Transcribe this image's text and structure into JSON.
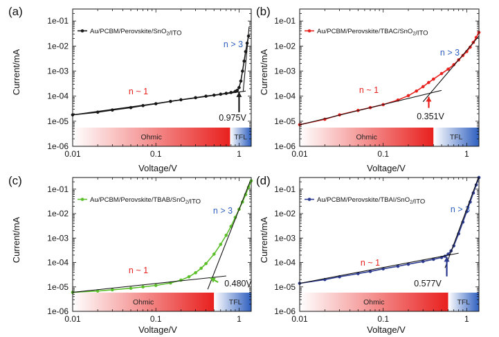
{
  "chart_data": [
    {
      "type": "line",
      "panel_label": "(a)",
      "xlabel": "Voltage/V",
      "ylabel": "Current/mA",
      "xscale": "log",
      "yscale": "log",
      "xlim": [
        0.01,
        1.4
      ],
      "ylim": [
        1e-06,
        0.3
      ],
      "x_tick_labels": [
        "0.01",
        "0.1",
        "1"
      ],
      "y_tick_labels": [
        "1e-06",
        "1e-05",
        "1e-04",
        "1e-03",
        "1e-02",
        "1e-01"
      ],
      "legend_location": "top-left",
      "series": [
        {
          "name": "Au/PCBM/Perovskite/SnO2/ITO",
          "color": "#1a1a1a",
          "x": [
            0.01,
            0.02,
            0.03,
            0.05,
            0.07,
            0.1,
            0.15,
            0.2,
            0.3,
            0.4,
            0.5,
            0.6,
            0.7,
            0.8,
            0.9,
            0.95,
            1.0,
            1.05,
            1.1,
            1.15,
            1.2,
            1.25,
            1.3
          ],
          "y": [
            1.8e-05,
            2.3e-05,
            2.8e-05,
            3.5e-05,
            4.2e-05,
            5e-05,
            6.2e-05,
            7.2e-05,
            8.7e-05,
            0.0001,
            0.00011,
            0.00012,
            0.00013,
            0.00014,
            0.000155,
            0.00017,
            0.00022,
            0.0004,
            0.001,
            0.0025,
            0.006,
            0.013,
            0.025
          ]
        }
      ],
      "annotations": {
        "n_low": "n ~ 1",
        "n_high": "n > 3",
        "crossover": "0.975V"
      },
      "regions": [
        {
          "label": "Ohmic",
          "x": [
            0.01,
            0.78
          ]
        },
        {
          "label": "TFL",
          "x": [
            0.78,
            1.4
          ]
        }
      ]
    },
    {
      "type": "line",
      "panel_label": "(b)",
      "xlabel": "Voltage/V",
      "ylabel": "Current/mA",
      "xscale": "log",
      "yscale": "log",
      "xlim": [
        0.01,
        1.4
      ],
      "ylim": [
        1e-06,
        0.3
      ],
      "x_tick_labels": [
        "0.01",
        "0.1",
        "1"
      ],
      "y_tick_labels": [
        "1e-06",
        "1e-05",
        "1e-04",
        "1e-03",
        "1e-02",
        "1e-01"
      ],
      "legend_location": "top-left",
      "series": [
        {
          "name": "Au/PCBM/Perovskite/TBAC/SnO2/ITO",
          "color": "#e8201e",
          "x": [
            0.01,
            0.02,
            0.03,
            0.05,
            0.07,
            0.1,
            0.15,
            0.2,
            0.25,
            0.3,
            0.35,
            0.4,
            0.5,
            0.6,
            0.7,
            0.8,
            0.9,
            1.0,
            1.1,
            1.2,
            1.3,
            1.4
          ],
          "y": [
            7.3e-06,
            1.2e-05,
            1.8e-05,
            2.7e-05,
            3.5e-05,
            4.6e-05,
            7e-05,
            0.000105,
            0.00016,
            0.00024,
            0.00035,
            0.00048,
            0.0008,
            0.0012,
            0.0018,
            0.0028,
            0.0042,
            0.006,
            0.009,
            0.014,
            0.022,
            0.035
          ]
        }
      ],
      "annotations": {
        "n_low": "n ~ 1",
        "n_high": "n > 3",
        "crossover": "0.351V"
      },
      "regions": [
        {
          "label": "Ohmic",
          "x": [
            0.01,
            0.4
          ]
        },
        {
          "label": "TFL",
          "x": [
            0.4,
            1.4
          ]
        }
      ]
    },
    {
      "type": "line",
      "panel_label": "(c)",
      "xlabel": "Voltage/V",
      "ylabel": "Current/mA",
      "xscale": "log",
      "yscale": "log",
      "xlim": [
        0.01,
        1.4
      ],
      "ylim": [
        1e-06,
        0.3
      ],
      "x_tick_labels": [
        "0.01",
        "0.1",
        "1"
      ],
      "y_tick_labels": [
        "1e-06",
        "1e-05",
        "1e-04",
        "1e-03",
        "1e-02",
        "1e-01"
      ],
      "legend_location": "top-left",
      "series": [
        {
          "name": "Au/PCBM/Perovskite/TBAB/SnO2/ITO",
          "color": "#5bbf2a",
          "x": [
            0.01,
            0.02,
            0.03,
            0.05,
            0.07,
            0.1,
            0.15,
            0.2,
            0.25,
            0.3,
            0.35,
            0.4,
            0.5,
            0.6,
            0.7,
            0.8,
            0.9,
            1.0,
            1.1,
            1.2,
            1.3,
            1.4
          ],
          "y": [
            6e-06,
            6.8e-06,
            7.6e-06,
            8.8e-06,
            1e-05,
            1.15e-05,
            1.45e-05,
            1.9e-05,
            2.6e-05,
            3.8e-05,
            5.8e-05,
            9e-05,
            0.00022,
            0.00055,
            0.0013,
            0.003,
            0.007,
            0.015,
            0.03,
            0.06,
            0.12,
            0.22
          ]
        }
      ],
      "annotations": {
        "n_low": "n ~ 1",
        "n_high": "n > 3",
        "crossover": "0.480V"
      },
      "regions": [
        {
          "label": "Ohmic",
          "x": [
            0.01,
            0.5
          ]
        },
        {
          "label": "TFL",
          "x": [
            0.5,
            1.4
          ]
        }
      ]
    },
    {
      "type": "line",
      "panel_label": "(d)",
      "xlabel": "Voltage/V",
      "ylabel": "Current/mA",
      "xscale": "log",
      "yscale": "log",
      "xlim": [
        0.01,
        1.4
      ],
      "ylim": [
        1e-06,
        0.3
      ],
      "x_tick_labels": [
        "0.01",
        "0.1",
        "1"
      ],
      "y_tick_labels": [
        "1e-06",
        "1e-05",
        "1e-04",
        "1e-03",
        "1e-02",
        "1e-01"
      ],
      "legend_location": "top-left",
      "series": [
        {
          "name": "Au/PCBM/Perovskite/TBAI/SnO2/ITO",
          "color": "#2b3990",
          "x": [
            0.01,
            0.02,
            0.03,
            0.05,
            0.07,
            0.1,
            0.15,
            0.2,
            0.3,
            0.4,
            0.5,
            0.55,
            0.6,
            0.65,
            0.7,
            0.8,
            0.9,
            1.0,
            1.1,
            1.2,
            1.3,
            1.4
          ],
          "y": [
            1.4e-05,
            2e-05,
            2.6e-05,
            3.5e-05,
            4.3e-05,
            5.5e-05,
            7e-05,
            8.5e-05,
            0.00011,
            0.000135,
            0.00016,
            0.00018,
            0.00022,
            0.0003,
            0.00048,
            0.0015,
            0.0045,
            0.012,
            0.03,
            0.07,
            0.15,
            0.3
          ]
        }
      ],
      "annotations": {
        "n_low": "n ~ 1",
        "n_high": "n > 3",
        "crossover": "0.577V"
      },
      "regions": [
        {
          "label": "Ohmic",
          "x": [
            0.01,
            0.6
          ]
        },
        {
          "label": "TFL",
          "x": [
            0.6,
            1.4
          ]
        }
      ]
    }
  ]
}
